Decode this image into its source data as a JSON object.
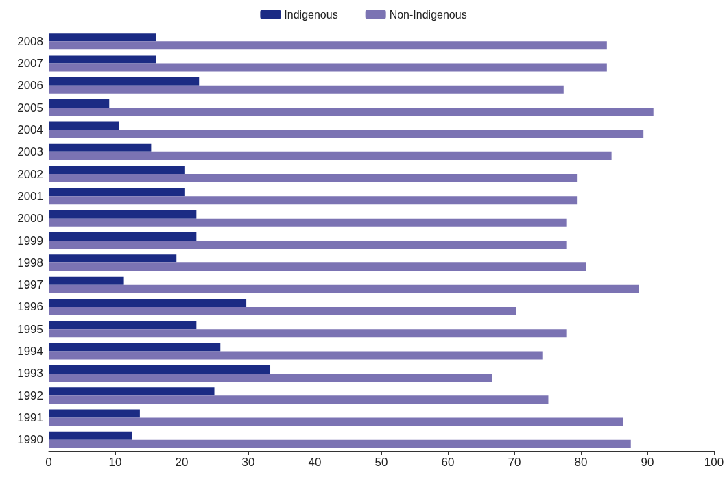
{
  "chart_data": {
    "type": "bar",
    "orientation": "horizontal",
    "categories": [
      "2008",
      "2007",
      "2006",
      "2005",
      "2004",
      "2003",
      "2002",
      "2001",
      "2000",
      "1999",
      "1998",
      "1997",
      "1996",
      "1995",
      "1994",
      "1993",
      "1992",
      "1991",
      "1990"
    ],
    "series": [
      {
        "name": "Indigenous",
        "color": "#1b2b84",
        "values": [
          16.1,
          16.1,
          22.6,
          9.1,
          10.6,
          15.4,
          20.5,
          20.5,
          22.2,
          22.2,
          19.2,
          11.3,
          29.7,
          22.2,
          25.8,
          33.3,
          24.9,
          13.7,
          12.5
        ]
      },
      {
        "name": "Non-Indigenous",
        "color": "#7b73b3",
        "values": [
          83.9,
          83.9,
          77.4,
          90.9,
          89.4,
          84.6,
          79.5,
          79.5,
          77.8,
          77.8,
          80.8,
          88.7,
          70.3,
          77.8,
          74.2,
          66.7,
          75.1,
          86.3,
          87.5
        ]
      }
    ],
    "xlim": [
      0,
      100
    ],
    "xticks": [
      0,
      10,
      20,
      30,
      40,
      50,
      60,
      70,
      80,
      90,
      100
    ],
    "grid": false,
    "legend": "top"
  }
}
